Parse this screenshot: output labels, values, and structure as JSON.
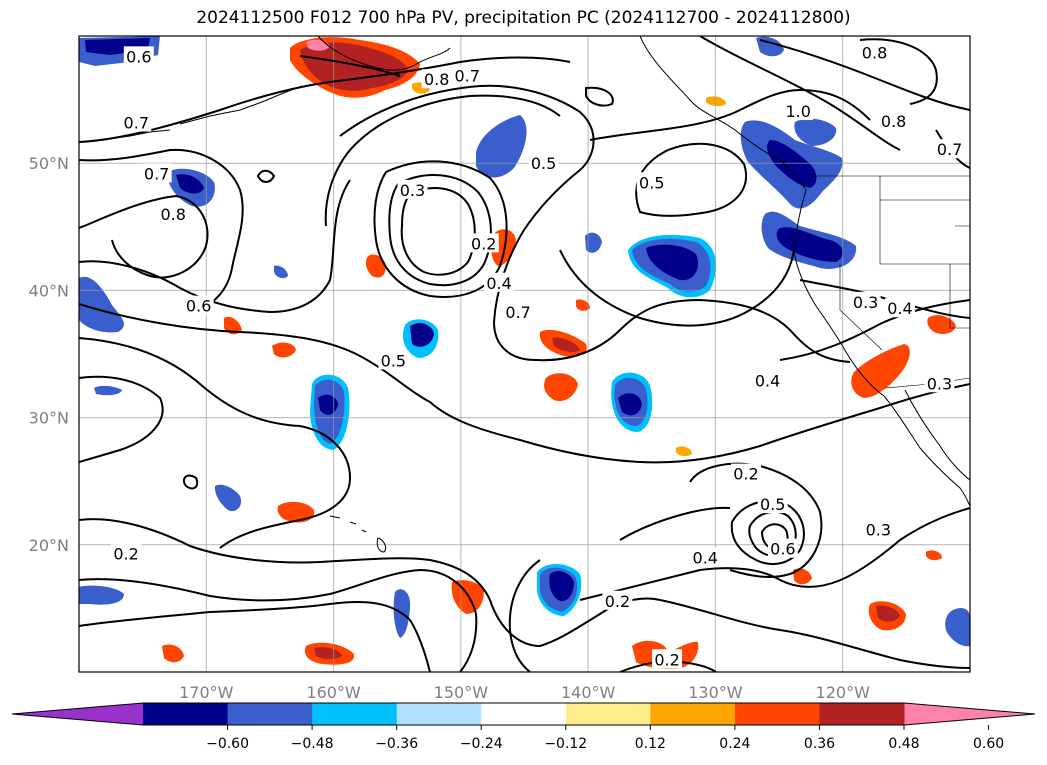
{
  "title": "2024112500 F012 700 hPa PV, precipitation PC (2024112700 - 2024112800)",
  "map": {
    "projection": "PlateCarree",
    "lon_range": [
      -180,
      -110
    ],
    "lat_range": [
      10,
      60
    ],
    "gridlines": true,
    "lat_ticks": [
      {
        "value": 20,
        "label": "20°N"
      },
      {
        "value": 30,
        "label": "30°N"
      },
      {
        "value": 40,
        "label": "40°N"
      },
      {
        "value": 50,
        "label": "50°N"
      }
    ],
    "lon_ticks": [
      {
        "value": -170,
        "label": "170°W"
      },
      {
        "value": -160,
        "label": "160°W"
      },
      {
        "value": -150,
        "label": "150°W"
      },
      {
        "value": -140,
        "label": "140°W"
      },
      {
        "value": -130,
        "label": "130°W"
      },
      {
        "value": -120,
        "label": "120°W"
      }
    ],
    "contour_labels": [
      {
        "text": "0.6",
        "lon": -175.3,
        "lat": 58.4
      },
      {
        "text": "0.7",
        "lon": -175.5,
        "lat": 53.2
      },
      {
        "text": "0.7",
        "lon": -173.9,
        "lat": 49.2
      },
      {
        "text": "0.8",
        "lon": -172.6,
        "lat": 46.0
      },
      {
        "text": "0.6",
        "lon": -170.6,
        "lat": 38.8
      },
      {
        "text": "0.8",
        "lon": -151.9,
        "lat": 56.6
      },
      {
        "text": "0.7",
        "lon": -149.5,
        "lat": 56.9
      },
      {
        "text": "0.3",
        "lon": -153.8,
        "lat": 47.9
      },
      {
        "text": "0.2",
        "lon": -148.2,
        "lat": 43.7
      },
      {
        "text": "0.5",
        "lon": -143.5,
        "lat": 50.0
      },
      {
        "text": "0.4",
        "lon": -147.0,
        "lat": 40.6
      },
      {
        "text": "0.7",
        "lon": -145.5,
        "lat": 38.3
      },
      {
        "text": "0.5",
        "lon": -155.3,
        "lat": 34.5
      },
      {
        "text": "0.5",
        "lon": -135.0,
        "lat": 48.5
      },
      {
        "text": "0.8",
        "lon": -117.5,
        "lat": 58.7
      },
      {
        "text": "1.0",
        "lon": -123.5,
        "lat": 54.1
      },
      {
        "text": "0.8",
        "lon": -116.0,
        "lat": 53.3
      },
      {
        "text": "0.7",
        "lon": -111.6,
        "lat": 51.1
      },
      {
        "text": "0.3",
        "lon": -118.2,
        "lat": 39.1
      },
      {
        "text": "0.4",
        "lon": -115.5,
        "lat": 38.6
      },
      {
        "text": "0.4",
        "lon": -125.9,
        "lat": 32.9
      },
      {
        "text": "0.3",
        "lon": -112.4,
        "lat": 32.7
      },
      {
        "text": "0.2",
        "lon": -127.6,
        "lat": 25.6
      },
      {
        "text": "0.5",
        "lon": -125.5,
        "lat": 23.2
      },
      {
        "text": "0.6",
        "lon": -124.7,
        "lat": 19.7
      },
      {
        "text": "0.4",
        "lon": -130.8,
        "lat": 19.0
      },
      {
        "text": "0.3",
        "lon": -117.2,
        "lat": 21.2
      },
      {
        "text": "0.2",
        "lon": -176.3,
        "lat": 19.3
      },
      {
        "text": "0.2",
        "lon": -137.7,
        "lat": 15.6
      },
      {
        "text": "0.2",
        "lon": -133.8,
        "lat": 11.0
      }
    ]
  },
  "colorbar": {
    "ticks": [
      "−0.60",
      "−0.48",
      "−0.36",
      "−0.24",
      "−0.12",
      "0.12",
      "0.24",
      "0.36",
      "0.48",
      "0.60"
    ],
    "colors": [
      "#9932cc",
      "#00008b",
      "#3a5fcd",
      "#00bfff",
      "#b0e2ff",
      "#ffffff",
      "#ffec8b",
      "#ffa500",
      "#ff4500",
      "#b22222",
      "#ff82ab"
    ],
    "extend": "both"
  },
  "precip_colors": {
    "neg_weak": "#00bfff",
    "neg_mid": "#3a5fcd",
    "neg_strong": "#00008b",
    "pos_weak": "#ffa500",
    "pos_mid": "#ff4500",
    "pos_strong": "#b22222",
    "pos_max": "#ff82ab"
  }
}
